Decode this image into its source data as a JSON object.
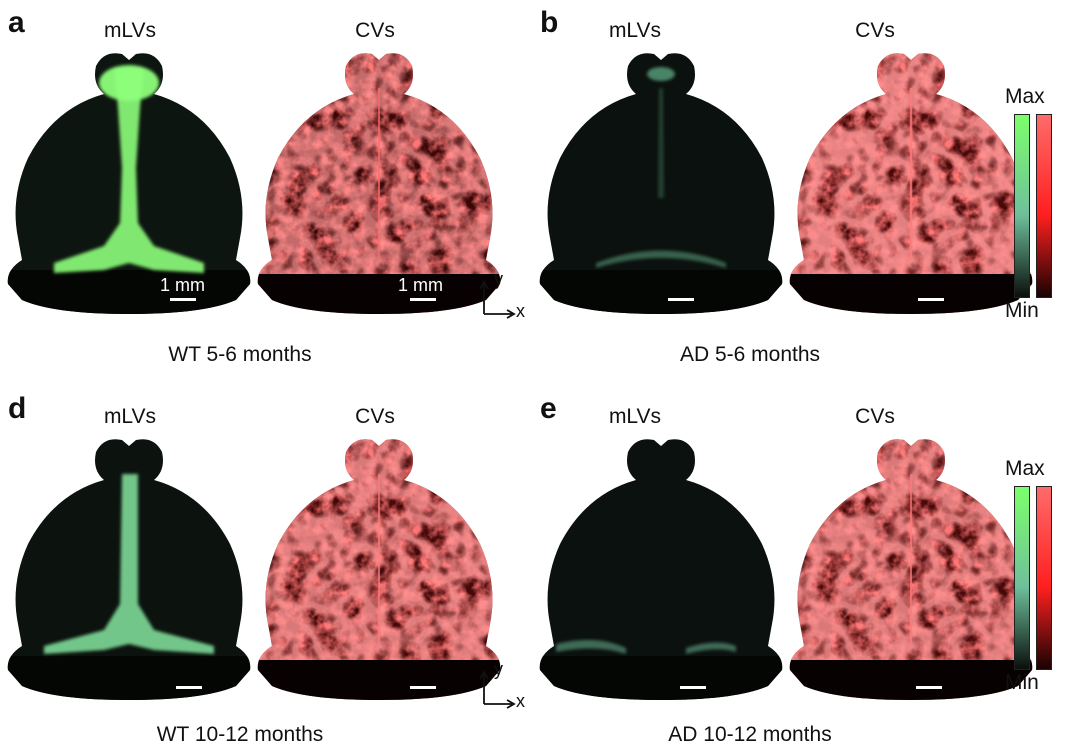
{
  "panels": [
    {
      "letter": "a",
      "channels": [
        "mLVs",
        "CVs"
      ],
      "caption": "WT 5-6 months",
      "scale": "1 mm",
      "lv": "strong",
      "cv": "normal"
    },
    {
      "letter": "b",
      "channels": [
        "mLVs",
        "CVs"
      ],
      "caption": "AD 5-6 months",
      "scale": "",
      "lv": "weak",
      "cv": "normal"
    },
    {
      "letter": "d",
      "channels": [
        "mLVs",
        "CVs"
      ],
      "caption": "WT 10-12 months",
      "scale": "",
      "lv": "medium",
      "cv": "normal"
    },
    {
      "letter": "e",
      "channels": [
        "mLVs",
        "CVs"
      ],
      "caption": "AD 10-12 months",
      "scale": "",
      "lv": "faint",
      "cv": "normal"
    }
  ],
  "axes": {
    "y": "y",
    "x": "x"
  },
  "legend": {
    "max": "Max",
    "min": "Min",
    "colors": {
      "lv": "#7CFF6B",
      "cv": "#FF3B3B"
    }
  }
}
